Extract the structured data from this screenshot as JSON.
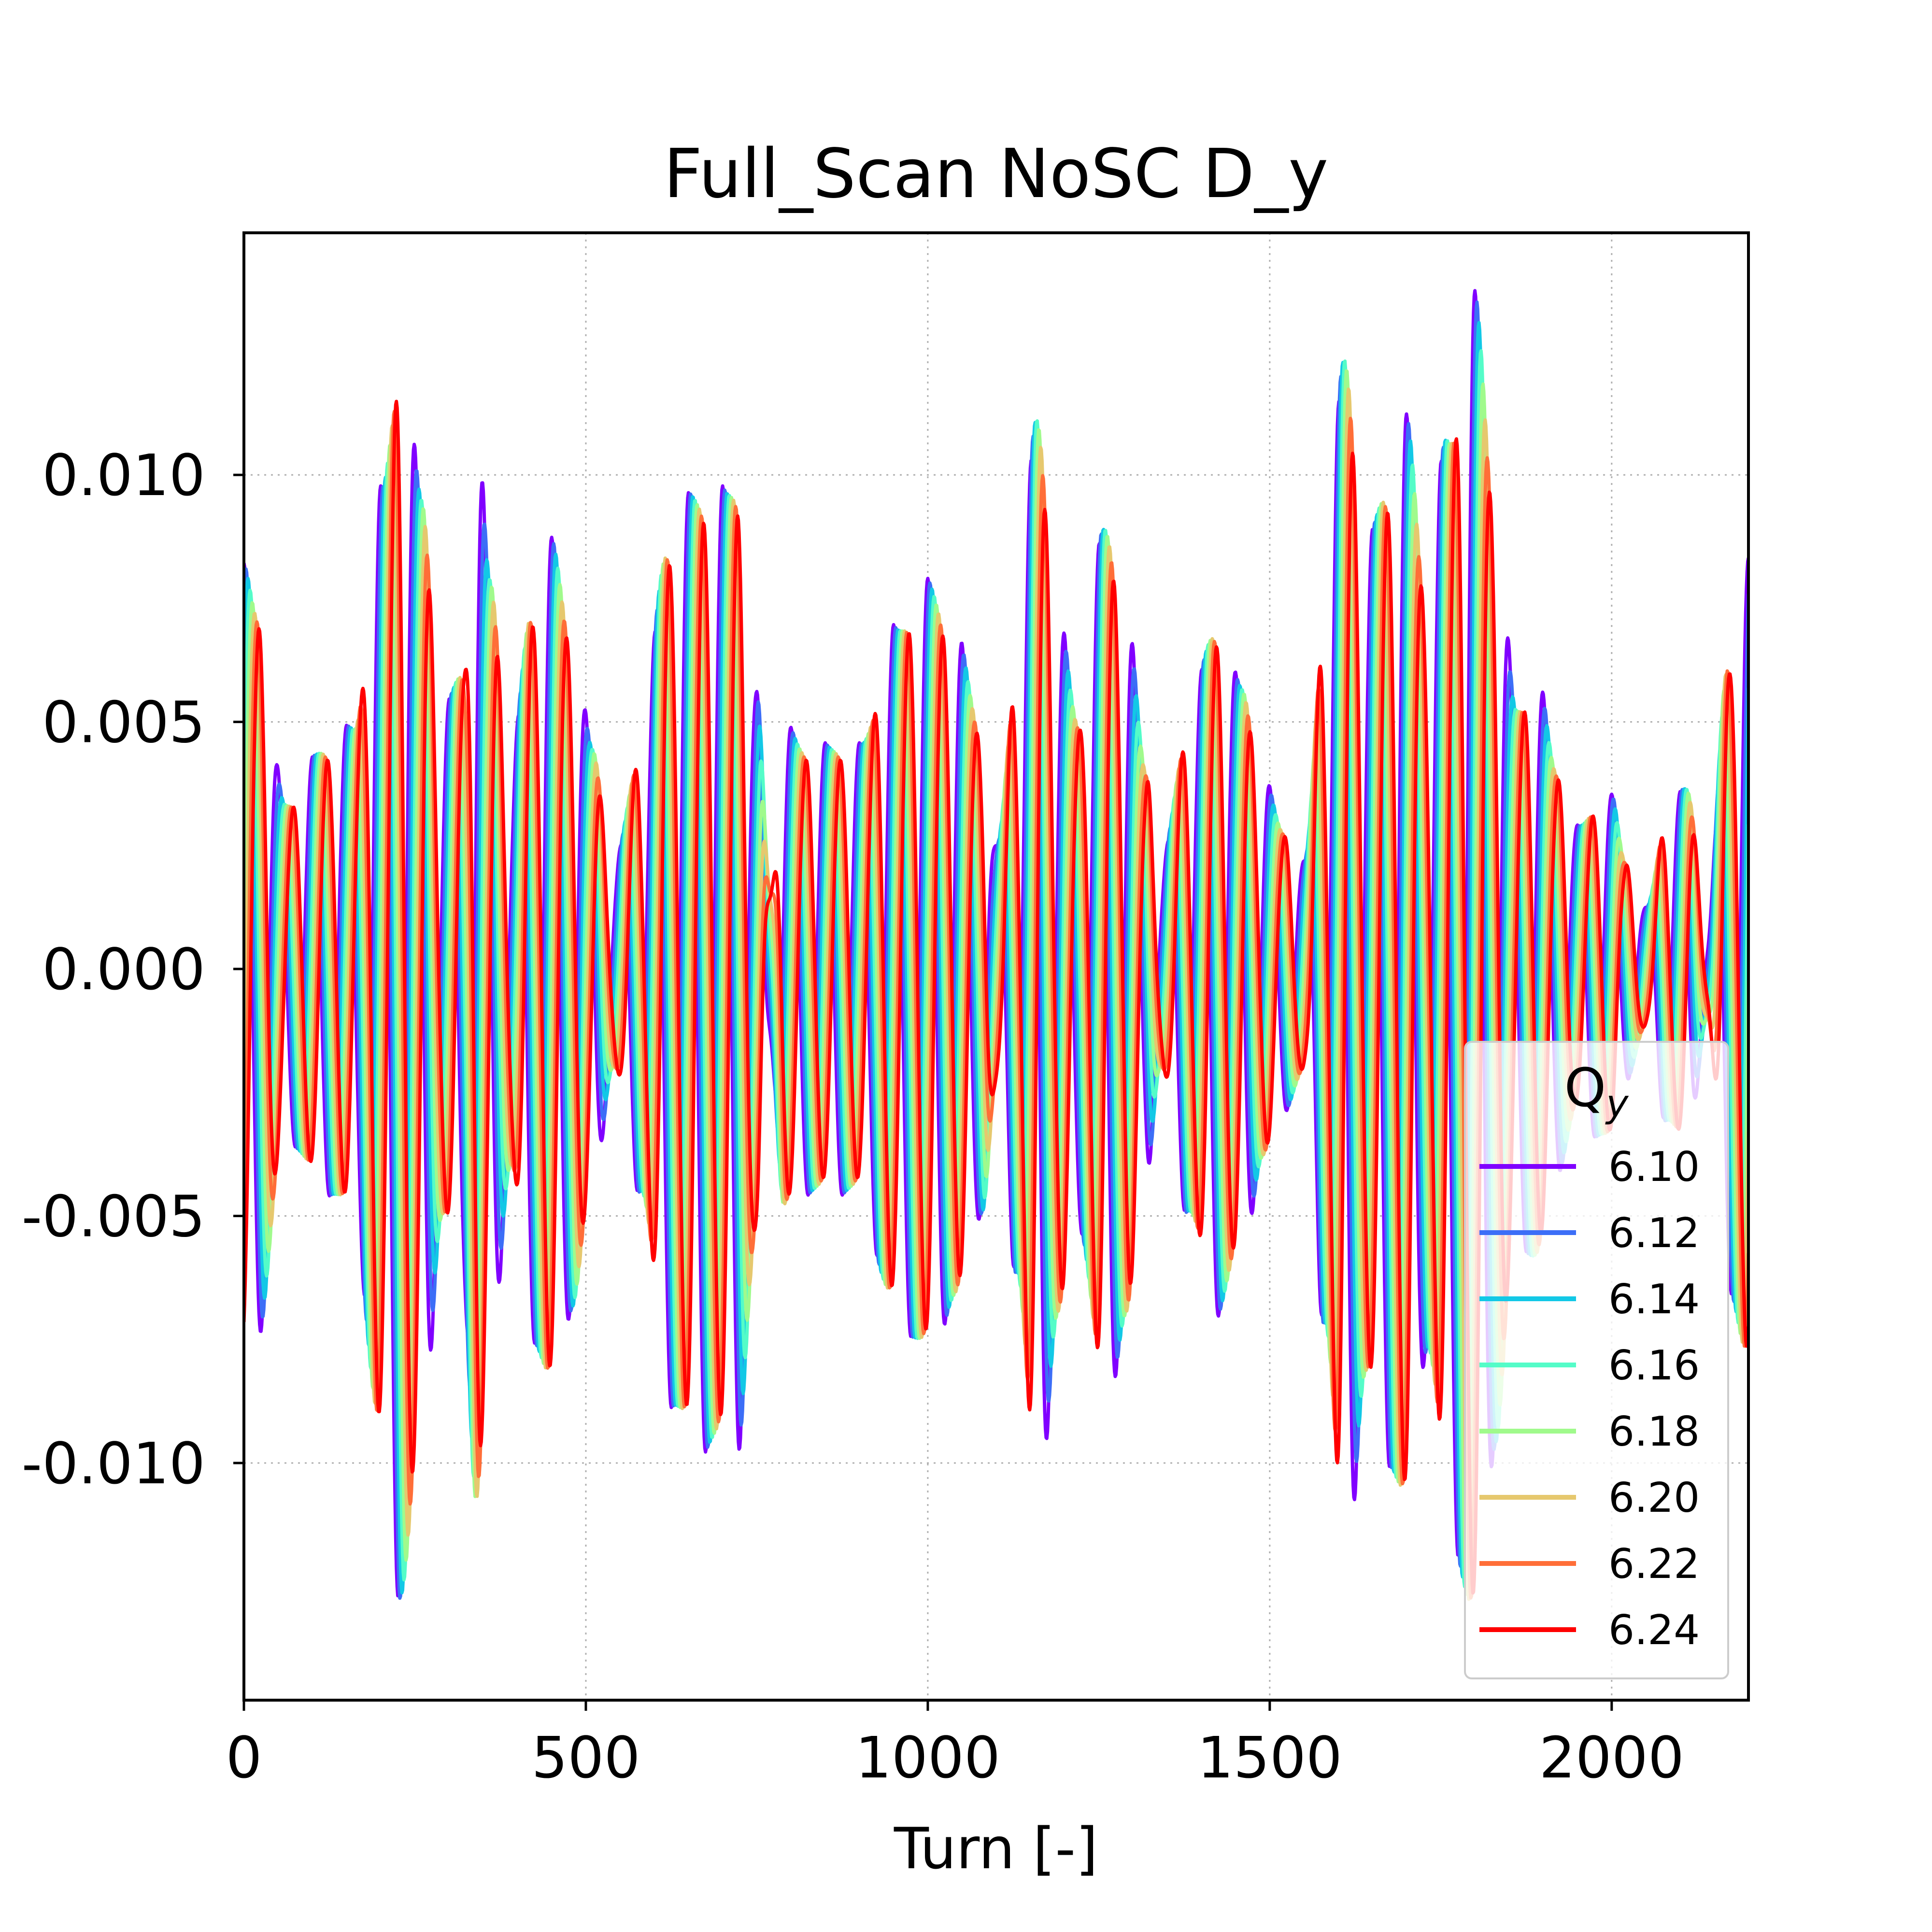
{
  "chart_data": {
    "type": "line",
    "title": "Full_Scan NoSC D_y",
    "xlabel": "Turn [-]",
    "ylabel": "",
    "xlim": [
      0,
      2200
    ],
    "ylim": [
      -0.0148,
      0.0149
    ],
    "xticks": [
      0,
      500,
      1000,
      1500,
      2000
    ],
    "xtick_labels": [
      "0",
      "500",
      "1000",
      "1500",
      "2000"
    ],
    "yticks": [
      -0.01,
      -0.005,
      0.0,
      0.005,
      0.01
    ],
    "ytick_labels": [
      "-0.010",
      "-0.005",
      "0.000",
      "0.005",
      "0.010"
    ],
    "grid": true,
    "legend": {
      "title_base": "Q",
      "title_sub": "y",
      "position": "lower-right"
    },
    "envelope": {
      "turn": [
        0,
        20,
        60,
        120,
        160,
        200,
        230,
        260,
        290,
        320,
        340,
        360,
        390,
        420,
        450,
        480,
        510,
        540,
        580,
        620,
        660,
        700,
        720,
        750,
        770,
        790,
        820,
        860,
        900,
        950,
        1000,
        1040,
        1080,
        1100,
        1130,
        1160,
        1190,
        1220,
        1260,
        1290,
        1320,
        1340,
        1380,
        1420,
        1460,
        1490,
        1520,
        1550,
        1580,
        1610,
        1640,
        1670,
        1700,
        1730,
        1760,
        1800,
        1830,
        1860,
        1890,
        1920,
        1950,
        1980,
        2000,
        2020,
        2050,
        2080,
        2110,
        2140,
        2170,
        2200
      ],
      "amplitude": [
        0.0079,
        0.0072,
        0.0033,
        0.0044,
        0.0048,
        0.0094,
        0.0124,
        0.0094,
        0.005,
        0.006,
        0.0108,
        0.0078,
        0.004,
        0.0072,
        0.0084,
        0.0067,
        0.0044,
        0.002,
        0.0044,
        0.0085,
        0.0094,
        0.0094,
        0.0096,
        0.0054,
        0.0016,
        0.0048,
        0.0044,
        0.0044,
        0.0044,
        0.0067,
        0.0076,
        0.0066,
        0.0048,
        0.0024,
        0.006,
        0.011,
        0.007,
        0.005,
        0.0088,
        0.007,
        0.004,
        0.002,
        0.0048,
        0.0068,
        0.0056,
        0.0038,
        0.0028,
        0.0021,
        0.007,
        0.0122,
        0.0082,
        0.0096,
        0.0108,
        0.0075,
        0.0106,
        0.0132,
        0.0094,
        0.0052,
        0.0058,
        0.004,
        0.0028,
        0.0033,
        0.0034,
        0.0022,
        0.0012,
        0.003,
        0.0036,
        0.001,
        0.0062,
        0.008
      ]
    },
    "series": [
      {
        "name": "6.10",
        "color": "#8000ff",
        "scale": 1.04
      },
      {
        "name": "6.12",
        "color": "#3c6ef7",
        "scale": 1.03
      },
      {
        "name": "6.14",
        "color": "#12c8e6",
        "scale": 1.02
      },
      {
        "name": "6.16",
        "color": "#54fcc8",
        "scale": 1.01
      },
      {
        "name": "6.18",
        "color": "#a0fa8c",
        "scale": 1.0
      },
      {
        "name": "6.20",
        "color": "#e6c86e",
        "scale": 0.99
      },
      {
        "name": "6.22",
        "color": "#ff6e38",
        "scale": 0.975
      },
      {
        "name": "6.24",
        "color": "#ff0000",
        "scale": 0.96
      }
    ]
  }
}
